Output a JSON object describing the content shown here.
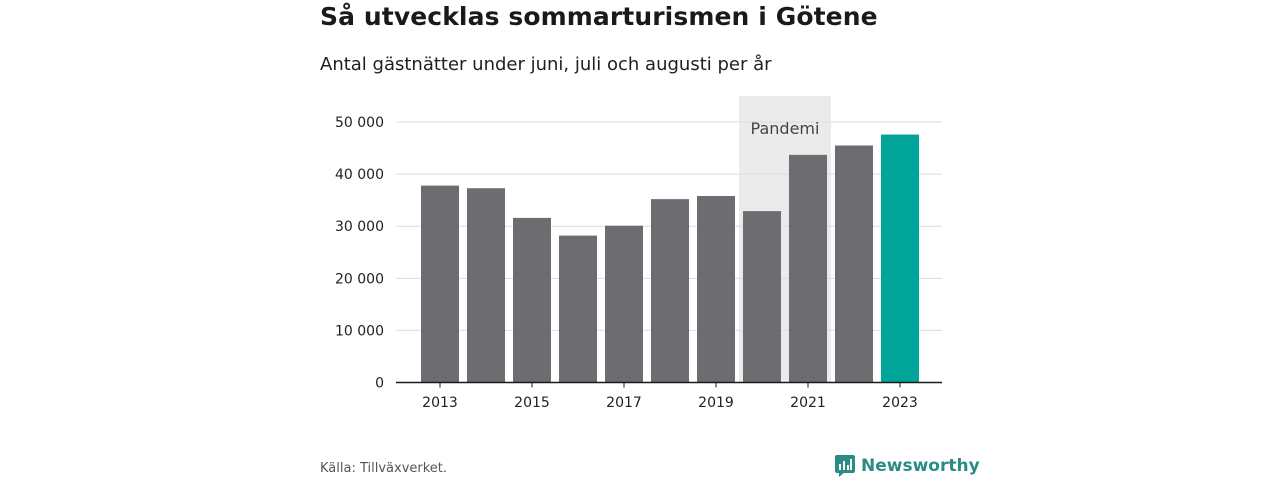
{
  "header": {
    "title": "Så utvecklas sommarturismen i Götene",
    "subtitle": "Antal gästnätter under juni, juli och augusti per år"
  },
  "footer": {
    "source": "Källa: Tillväxverket.",
    "brand": "Newsworthy"
  },
  "colors": {
    "bar": "#6d6c71",
    "highlight": "#00a499",
    "band": "#ebebeb",
    "grid": "#dcdcdc",
    "axis": "#1a1a1a",
    "brand": "#2a8c84"
  },
  "chart_data": {
    "type": "bar",
    "title": "Så utvecklas sommarturismen i Götene",
    "subtitle": "Antal gästnätter under juni, juli och augusti per år",
    "xlabel": "",
    "ylabel": "",
    "categories": [
      "2013",
      "2014",
      "2015",
      "2016",
      "2017",
      "2018",
      "2019",
      "2020",
      "2021",
      "2022",
      "2023"
    ],
    "values": [
      37800,
      37300,
      31600,
      28200,
      30100,
      35200,
      35800,
      32900,
      43700,
      45500,
      47600
    ],
    "highlight_category": "2023",
    "ylim": [
      0,
      55000
    ],
    "yticks": [
      0,
      10000,
      20000,
      30000,
      40000,
      50000
    ],
    "ytick_labels": [
      "0",
      "10 000",
      "20 000",
      "30 000",
      "40 000",
      "50 000"
    ],
    "xtick_labels": [
      "2013",
      "2015",
      "2017",
      "2019",
      "2021",
      "2023"
    ],
    "grid": true,
    "legend": "none",
    "shaded_band": {
      "label": "Pandemi",
      "from": "2020",
      "to": "2021"
    }
  }
}
